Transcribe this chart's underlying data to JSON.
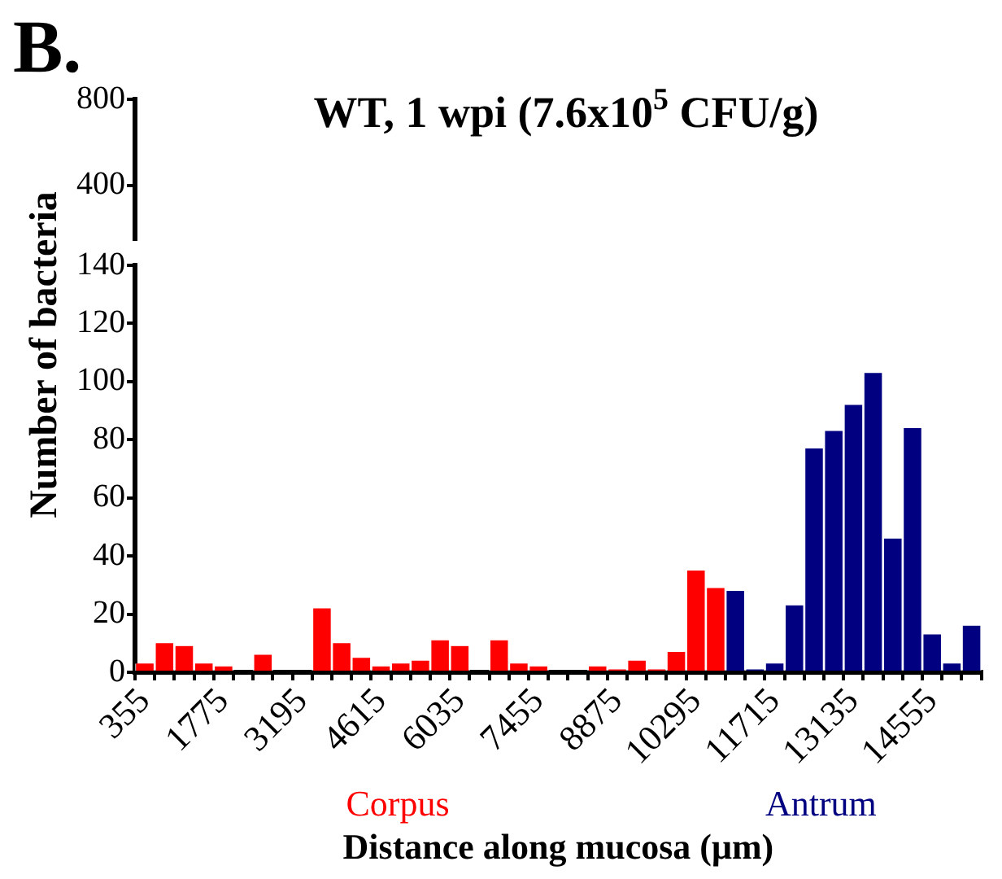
{
  "chart_data": [
    {
      "type": "bar",
      "title": "WT, 1 wpi (7.6x10$^{5}$ CFU/g)",
      "annotations": [
        "B."
      ],
      "tick_labels": "y",
      "ylim": [
        150,
        800
      ],
      "yticks": [
        400,
        800
      ],
      "categories": [
        "355",
        null,
        null,
        null,
        "1775",
        null,
        null,
        null,
        "3195",
        null,
        null,
        null,
        "4615",
        null,
        null,
        null,
        "6035",
        null,
        null,
        null,
        "7455",
        null,
        null,
        null,
        "8875",
        null,
        null,
        null,
        "10295",
        null,
        null,
        null,
        "11715",
        null,
        null,
        null,
        "13135",
        null,
        null,
        null,
        "14555",
        null,
        null
      ],
      "values": [
        null,
        null,
        null,
        null,
        null,
        null,
        null,
        null,
        null,
        null,
        null,
        null,
        null,
        null,
        null,
        null,
        null,
        null,
        null,
        null,
        null,
        null,
        null,
        null,
        null,
        null,
        null,
        null,
        null,
        null,
        null,
        null,
        null,
        null,
        null,
        null,
        null,
        null,
        null,
        null,
        null,
        null,
        null
      ]
    },
    {
      "type": "bar",
      "xlabel": "Distance along mucosa (μm)",
      "ylabel": "Number of bacteria",
      "ylim": [
        0,
        140
      ],
      "yticks": [
        0,
        20,
        40,
        60,
        80,
        100,
        120,
        140
      ],
      "categories": [
        "355",
        null,
        null,
        null,
        "1775",
        null,
        null,
        null,
        "3195",
        null,
        null,
        null,
        "4615",
        null,
        null,
        null,
        "6035",
        null,
        null,
        null,
        "7455",
        null,
        null,
        null,
        "8875",
        null,
        null,
        null,
        "10295",
        null,
        null,
        null,
        "11715",
        null,
        null,
        null,
        "13135",
        null,
        null,
        null,
        "14555",
        null,
        null
      ],
      "series": [
        {
          "name": "Corpus",
          "color": "#ff0000",
          "values": [
            3,
            10,
            9,
            3,
            2,
            0,
            6,
            0,
            0,
            22,
            10,
            5,
            2,
            3,
            4,
            11,
            9,
            0,
            11,
            3,
            2,
            0,
            0,
            2,
            1,
            4,
            1,
            7,
            35,
            29,
            null,
            null,
            null,
            null,
            null,
            null,
            null,
            null,
            null,
            null,
            null,
            null,
            null
          ]
        },
        {
          "name": "Antrum",
          "color": "#000080",
          "values": [
            null,
            null,
            null,
            null,
            null,
            null,
            null,
            null,
            null,
            null,
            null,
            null,
            null,
            null,
            null,
            null,
            null,
            null,
            null,
            null,
            null,
            null,
            null,
            null,
            null,
            null,
            null,
            null,
            null,
            null,
            28,
            1,
            3,
            23,
            77,
            83,
            92,
            103,
            46,
            84,
            13,
            3,
            16
          ]
        }
      ]
    }
  ]
}
